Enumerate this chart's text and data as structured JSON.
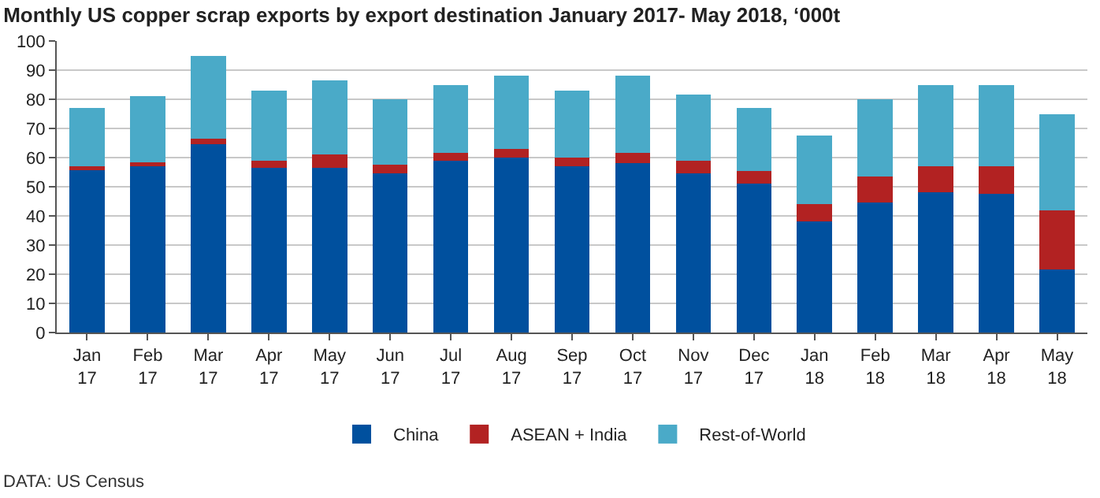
{
  "chart_data": {
    "type": "bar",
    "stacked": true,
    "title": "Monthly US copper scrap exports by export destination January 2017- May 2018, ‘000t",
    "categories": [
      "Jan 17",
      "Feb 17",
      "Mar 17",
      "Apr 17",
      "May 17",
      "Jun 17",
      "Jul 17",
      "Aug 17",
      "Sep 17",
      "Oct 17",
      "Nov 17",
      "Dec 17",
      "Jan 18",
      "Feb 18",
      "Mar 18",
      "Apr 18",
      "May 18"
    ],
    "series": [
      {
        "name": "China",
        "color": "#00509e",
        "values": [
          56,
          57,
          64.5,
          56.5,
          56.5,
          54.5,
          59,
          60,
          57,
          58,
          54.5,
          51,
          38,
          44.5,
          48,
          47.5,
          21.5
        ]
      },
      {
        "name": "ASEAN + India",
        "color": "#b22222",
        "values": [
          1,
          1.5,
          2,
          2.5,
          4.5,
          3,
          2.5,
          3,
          3,
          3.5,
          4.5,
          4.5,
          6,
          9,
          9,
          9.5,
          20.5
        ]
      },
      {
        "name": "Rest-of-World",
        "color": "#4aaac8",
        "values": [
          20,
          22.5,
          28.5,
          24,
          25.5,
          22.5,
          23.5,
          25,
          23,
          26.5,
          22.5,
          21.5,
          23.5,
          26.5,
          28,
          28,
          33
        ]
      }
    ],
    "ylim": [
      0,
      100
    ],
    "yticks": [
      0,
      10,
      20,
      30,
      40,
      50,
      60,
      70,
      80,
      90,
      100
    ],
    "grid": "y",
    "legend": "bottom",
    "annotations": [
      "DATA: US Census"
    ]
  }
}
